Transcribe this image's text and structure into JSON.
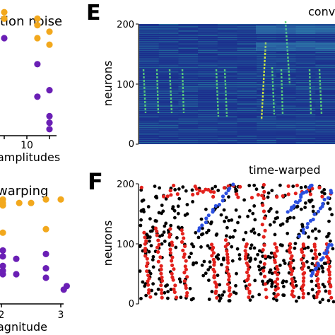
{
  "panels": {
    "left_top": {
      "title_fragment": "tion noise",
      "tick_label": "10",
      "xlabel_fragment": "amplitudes"
    },
    "left_bottom": {
      "title_fragment": "warping",
      "tick_labels": [
        "2",
        "3"
      ],
      "xlabel_fragment": "agnitude"
    },
    "E": {
      "letter": "E",
      "title_fragment": "conv",
      "ylabel": "neurons",
      "yticks": [
        "200",
        "100",
        "0"
      ]
    },
    "F": {
      "letter": "F",
      "title_fragment": "time-warped",
      "ylabel": "neurons",
      "yticks": [
        "200",
        "100",
        "0"
      ]
    }
  },
  "colors": {
    "orange": "#f2a81d",
    "purple": "#6a1fb5",
    "red": "#e3211c",
    "blue": "#2b4fe0",
    "black": "#000000",
    "heat_bg": "#1b2a8c"
  },
  "chart_data": [
    {
      "type": "scatter",
      "panel": "left_top",
      "series": [
        {
          "color": "orange",
          "points": [
            [
              -20,
              1.9
            ],
            [
              -20,
              1.8
            ],
            [
              -9,
              1.8
            ],
            [
              -9,
              1.7
            ],
            [
              -9,
              1.5
            ],
            [
              -5,
              1.6
            ],
            [
              -5,
              1.4
            ]
          ]
        },
        {
          "color": "purple",
          "points": [
            [
              -20,
              1.5
            ],
            [
              -9,
              1.1
            ],
            [
              -9,
              0.6
            ],
            [
              -5,
              0.7
            ],
            [
              -5,
              0.3
            ],
            [
              -5,
              0.2
            ],
            [
              -5,
              0.1
            ]
          ]
        }
      ]
    },
    {
      "type": "scatter",
      "panel": "left_bottom",
      "xtick_labels": [
        "2",
        "3"
      ],
      "series": [
        {
          "color": "orange",
          "points": [
            [
              1.0,
              0.85
            ],
            [
              1.0,
              0.6
            ],
            [
              1.55,
              0.88
            ],
            [
              1.7,
              0.83
            ],
            [
              2.3,
              0.85
            ],
            [
              2.5,
              0.85
            ],
            [
              2.75,
              0.88
            ],
            [
              2.75,
              0.63
            ],
            [
              3.0,
              0.88
            ]
          ]
        },
        {
          "color": "purple",
          "points": [
            [
              1.0,
              0.45
            ],
            [
              1.0,
              0.25
            ],
            [
              1.55,
              0.32
            ],
            [
              1.8,
              0.4
            ],
            [
              1.8,
              0.28
            ],
            [
              2.25,
              0.38
            ],
            [
              2.25,
              0.25
            ],
            [
              2.75,
              0.42
            ],
            [
              2.75,
              0.3
            ],
            [
              2.75,
              0.22
            ],
            [
              3.05,
              0.12
            ],
            [
              3.1,
              0.15
            ]
          ]
        }
      ]
    },
    {
      "type": "heatmap",
      "panel": "E",
      "ylabel": "neurons",
      "ylim": [
        0,
        200
      ],
      "yticks": [
        0,
        100,
        200
      ]
    },
    {
      "type": "scatter",
      "panel": "F",
      "ylabel": "neurons",
      "ylim": [
        0,
        200
      ],
      "yticks": [
        0,
        100,
        200
      ]
    }
  ]
}
